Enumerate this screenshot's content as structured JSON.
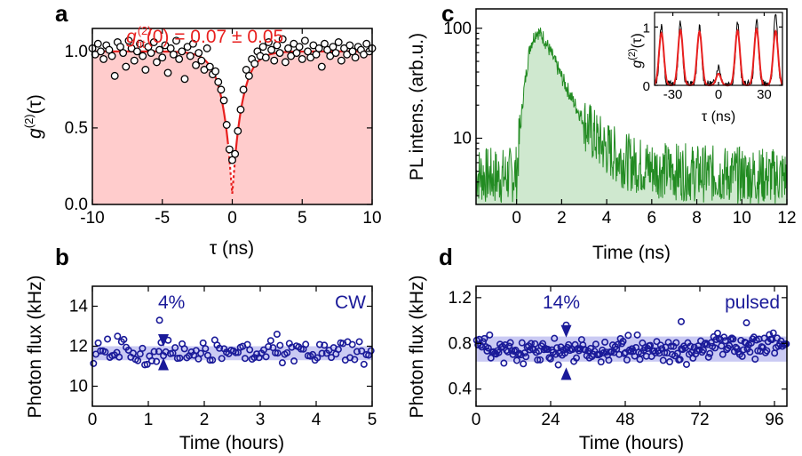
{
  "colors": {
    "fit_red": "#e8201f",
    "fill_pink": "#ffcccc",
    "pl_green": "#228b22",
    "pl_fill": "#cfe8cf",
    "flux_blue": "#1a1a99",
    "band_blue": "#b3b3ee"
  },
  "chart_data": [
    {
      "id": "a",
      "type": "scatter",
      "panel_label": "a",
      "annotation": {
        "prefix": "g",
        "sup": "(2)",
        "sub": "fit",
        "suffix": "(0) = 0.07 ± 0.05"
      },
      "ylabel_text": {
        "g": "g",
        "sup": "(2)",
        "arg": "(τ)"
      },
      "xlabel": "τ (ns)",
      "xlim": [
        -10,
        10
      ],
      "ylim": [
        0,
        1.15
      ],
      "xticks": [
        "-10",
        "-5",
        "0",
        "5",
        "10"
      ],
      "xtick_values": [
        -10,
        -5,
        0,
        5,
        10
      ],
      "yticks": [
        "0.0",
        "0.5",
        "1.0"
      ],
      "ytick_values": [
        0,
        0.5,
        1.0
      ],
      "fit": {
        "depth": 0.93,
        "tau_ns": 0.7
      },
      "points": {
        "x": [
          -10.0,
          -9.8,
          -9.6,
          -9.4,
          -9.2,
          -9.0,
          -8.8,
          -8.6,
          -8.4,
          -8.2,
          -8.0,
          -7.8,
          -7.6,
          -7.4,
          -7.2,
          -7.0,
          -6.8,
          -6.6,
          -6.4,
          -6.2,
          -6.0,
          -5.8,
          -5.6,
          -5.4,
          -5.2,
          -5.0,
          -4.8,
          -4.6,
          -4.4,
          -4.2,
          -4.0,
          -3.8,
          -3.6,
          -3.4,
          -3.2,
          -3.0,
          -2.8,
          -2.6,
          -2.4,
          -2.2,
          -2.0,
          -1.8,
          -1.6,
          -1.4,
          -1.2,
          -1.0,
          -0.8,
          -0.6,
          -0.4,
          -0.2,
          0.0,
          0.2,
          0.4,
          0.6,
          0.8,
          1.0,
          1.2,
          1.4,
          1.6,
          1.8,
          2.0,
          2.2,
          2.4,
          2.6,
          2.8,
          3.0,
          3.2,
          3.4,
          3.6,
          3.8,
          4.0,
          4.2,
          4.4,
          4.6,
          4.8,
          5.0,
          5.2,
          5.4,
          5.6,
          5.8,
          6.0,
          6.2,
          6.4,
          6.6,
          6.8,
          7.0,
          7.2,
          7.4,
          7.6,
          7.8,
          8.0,
          8.2,
          8.4,
          8.6,
          8.8,
          9.0,
          9.2,
          9.4,
          9.6,
          9.8,
          10.0
        ],
        "y": [
          1.02,
          0.98,
          1.05,
          1.0,
          0.95,
          1.04,
          1.01,
          0.97,
          0.84,
          1.06,
          1.03,
          0.99,
          0.9,
          1.07,
          1.02,
          0.94,
          1.0,
          1.05,
          0.97,
          0.88,
          1.03,
          0.99,
          1.06,
          0.93,
          1.01,
          0.96,
          1.04,
          0.86,
          1.02,
          0.98,
          1.07,
          0.95,
          1.0,
          0.82,
          1.03,
          0.97,
          1.05,
          0.91,
          0.99,
          0.94,
          0.88,
          1.02,
          0.9,
          0.85,
          0.87,
          0.8,
          0.75,
          0.68,
          0.52,
          0.36,
          0.29,
          0.33,
          0.48,
          0.62,
          0.75,
          0.88,
          0.84,
          0.95,
          0.92,
          1.0,
          0.97,
          1.03,
          0.96,
          1.06,
          1.01,
          0.94,
          1.04,
          0.99,
          1.08,
          0.93,
          1.02,
          0.97,
          1.05,
          0.99,
          1.03,
          0.95,
          1.07,
          1.0,
          0.96,
          1.04,
          0.98,
          1.02,
          0.9,
          1.05,
          1.01,
          0.97,
          1.03,
          0.99,
          1.06,
          0.94,
          1.02,
          0.98,
          1.04,
          1.0,
          0.96,
          1.03,
          1.01,
          0.98,
          1.05,
          1.0,
          1.02
        ]
      }
    },
    {
      "id": "c",
      "type": "line",
      "panel_label": "c",
      "ylabel": "PL intens. (arb.u.)",
      "xlabel": "Time (ns)",
      "xlim": [
        -1.8,
        12
      ],
      "ylim": [
        2.5,
        150
      ],
      "yscale": "log",
      "xticks": [
        "0",
        "2",
        "4",
        "6",
        "8",
        "10",
        "12"
      ],
      "xtick_values": [
        0,
        2,
        4,
        6,
        8,
        10,
        12
      ],
      "yticks": [
        "10",
        "100"
      ],
      "ytick_values": [
        10,
        100
      ],
      "series": {
        "x": [
          -1.8,
          -1.5,
          -1.0,
          -0.5,
          0.0,
          0.3,
          0.6,
          0.9,
          1.2,
          1.6,
          2.0,
          2.5,
          3.0,
          3.5,
          4.0,
          4.5,
          5.0,
          6.0,
          7.0,
          8.0,
          9.0,
          10.0,
          11.0,
          12.0
        ],
        "y": [
          4.8,
          4.6,
          4.5,
          4.5,
          4.8,
          25,
          70,
          95,
          82,
          55,
          36,
          22,
          14,
          10,
          8,
          6.8,
          6,
          5.3,
          5,
          4.8,
          4.7,
          4.6,
          4.5,
          4.5
        ],
        "noise_dex": 0.12
      },
      "inset": {
        "ylabel_text": {
          "g": "g",
          "sup": "(2)",
          "arg": "(τ)"
        },
        "xlabel": "τ (ns)",
        "xlim": [
          -42,
          42
        ],
        "ylim": [
          0,
          1.25
        ],
        "xticks": [
          "-30",
          "0",
          "30"
        ],
        "xtick_values": [
          -30,
          0,
          30
        ],
        "yticks": [
          "0",
          "1"
        ],
        "ytick_values": [
          0,
          1
        ],
        "period_ns": 12.5,
        "pulse_width_ns": 1.6,
        "peak_heights": [
          0.9,
          0.95,
          0.92,
          0.2,
          0.94,
          0.97,
          0.93
        ],
        "data_peaks": [
          1.0,
          1.08,
          0.97,
          0.3,
          1.05,
          1.12,
          1.22
        ]
      }
    },
    {
      "id": "b",
      "type": "scatter",
      "panel_label": "b",
      "ylabel": "Photon flux (kHz)",
      "xlabel": "Time (hours)",
      "xlim": [
        0,
        5
      ],
      "ylim": [
        9,
        15
      ],
      "xticks": [
        "0",
        "1",
        "2",
        "3",
        "4",
        "5"
      ],
      "xtick_values": [
        0,
        1,
        2,
        3,
        4,
        5
      ],
      "yticks": [
        "10",
        "12",
        "14"
      ],
      "ytick_values": [
        10,
        12,
        14
      ],
      "label": "CW",
      "variation": "4%",
      "band": [
        11.3,
        12.0
      ],
      "arrow_x": 1.27,
      "arrow_top": 12.6,
      "arrow_bottom": 10.8,
      "points": {
        "count": 120,
        "mean": 11.7,
        "spread": 0.5,
        "extras": [
          {
            "x": 1.2,
            "y": 13.3
          },
          {
            "x": 0.45,
            "y": 12.5
          },
          {
            "x": 3.3,
            "y": 12.6
          }
        ]
      }
    },
    {
      "id": "d",
      "type": "scatter",
      "panel_label": "d",
      "ylabel": "Photon flux (kHz)",
      "xlabel": "Time (hours)",
      "xlim": [
        0,
        100
      ],
      "ylim": [
        0.25,
        1.3
      ],
      "xticks": [
        "0",
        "24",
        "48",
        "72",
        "96"
      ],
      "xtick_values": [
        0,
        24,
        48,
        72,
        96
      ],
      "yticks": [
        "0.4",
        "0.8",
        "1.2"
      ],
      "ytick_values": [
        0.4,
        0.8,
        1.2
      ],
      "label": "pulsed",
      "variation": "14%",
      "band": [
        0.64,
        0.86
      ],
      "arrow_x": 29,
      "arrow_top": 0.96,
      "arrow_bottom": 0.48,
      "points": {
        "count": 240,
        "mean": 0.74,
        "spread": 0.09,
        "extras": [
          {
            "x": 29,
            "y": 0.96
          },
          {
            "x": 66,
            "y": 0.99
          },
          {
            "x": 87,
            "y": 0.98
          }
        ]
      }
    }
  ]
}
